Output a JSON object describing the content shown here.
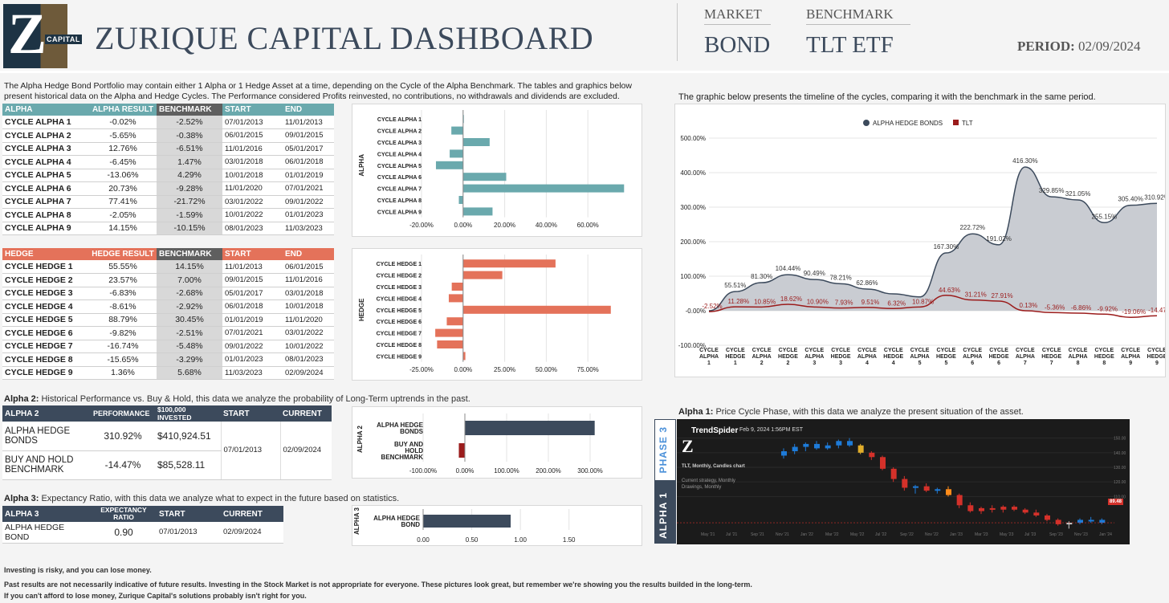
{
  "header": {
    "logo_letter": "Z",
    "logo_text": "CAPITAL",
    "title": "ZURIQUE CAPITAL DASHBOARD",
    "market_label": "MARKET",
    "market_value": "BOND",
    "benchmark_label": "BENCHMARK",
    "benchmark_value": "TLT ETF",
    "period_label": "PERIOD:",
    "period_value": "02/09/2024"
  },
  "intro": "The Alpha Hedge Bond Portfolio may contain either 1 Alpha or 1 Hedge Asset at a time, depending on the Cycle of the Alpha Benchmark. The tables and graphics below present historical data on the Alpha and Hedge Cycles. The Performance considered Profits reinvested, no contributions, no withdrawals and dividends are excluded.",
  "timeline_intro": "The graphic below presents the timeline of the cycles, comparing it with the benchmark in the same period.",
  "alpha_table": {
    "headers": [
      "ALPHA",
      "ALPHA RESULT",
      "BENCHMARK",
      "START",
      "END"
    ],
    "rows": [
      [
        "CYCLE ALPHA 1",
        "-0.02%",
        "-2.52%",
        "07/01/2013",
        "11/01/2013"
      ],
      [
        "CYCLE ALPHA 2",
        "-5.65%",
        "-0.38%",
        "06/01/2015",
        "09/01/2015"
      ],
      [
        "CYCLE ALPHA 3",
        "12.76%",
        "-6.51%",
        "11/01/2016",
        "05/01/2017"
      ],
      [
        "CYCLE ALPHA 4",
        "-6.45%",
        "1.47%",
        "03/01/2018",
        "06/01/2018"
      ],
      [
        "CYCLE ALPHA 5",
        "-13.06%",
        "4.29%",
        "10/01/2018",
        "01/01/2019"
      ],
      [
        "CYCLE ALPHA 6",
        "20.73%",
        "-9.28%",
        "11/01/2020",
        "07/01/2021"
      ],
      [
        "CYCLE ALPHA 7",
        "77.41%",
        "-21.72%",
        "03/01/2022",
        "09/01/2022"
      ],
      [
        "CYCLE ALPHA 8",
        "-2.05%",
        "-1.59%",
        "10/01/2022",
        "01/01/2023"
      ],
      [
        "CYCLE ALPHA 9",
        "14.15%",
        "-10.15%",
        "08/01/2023",
        "11/03/2023"
      ]
    ]
  },
  "hedge_table": {
    "headers": [
      "HEDGE",
      "HEDGE RESULT",
      "BENCHMARK",
      "START",
      "END"
    ],
    "rows": [
      [
        "CYCLE HEDGE 1",
        "55.55%",
        "14.15%",
        "11/01/2013",
        "06/01/2015"
      ],
      [
        "CYCLE HEDGE 2",
        "23.57%",
        "7.00%",
        "09/01/2015",
        "11/01/2016"
      ],
      [
        "CYCLE HEDGE 3",
        "-6.83%",
        "-2.68%",
        "05/01/2017",
        "03/01/2018"
      ],
      [
        "CYCLE HEDGE 4",
        "-8.61%",
        "-2.92%",
        "06/01/2018",
        "10/01/2018"
      ],
      [
        "CYCLE HEDGE 5",
        "88.79%",
        "30.45%",
        "01/01/2019",
        "11/01/2020"
      ],
      [
        "CYCLE HEDGE 6",
        "-9.82%",
        "-2.51%",
        "07/01/2021",
        "03/01/2022"
      ],
      [
        "CYCLE HEDGE 7",
        "-16.74%",
        "-5.48%",
        "09/01/2022",
        "10/01/2022"
      ],
      [
        "CYCLE HEDGE 8",
        "-15.65%",
        "-3.29%",
        "01/01/2023",
        "08/01/2023"
      ],
      [
        "CYCLE HEDGE 9",
        "1.36%",
        "5.68%",
        "11/03/2023",
        "02/09/2024"
      ]
    ]
  },
  "alpha2": {
    "title_bold": "Alpha 2:",
    "title_rest": " Historical Performance vs. Buy & Hold, this data we analyze the probability of Long-Term uptrends in the past.",
    "headers": [
      "ALPHA 2",
      "PERFORMANCE",
      "$100,000 INVESTED",
      "START",
      "CURRENT"
    ],
    "rows": [
      [
        "ALPHA HEDGE BONDS",
        "310.92%",
        "$410,924.51"
      ],
      [
        "BUY AND HOLD BENCHMARK",
        "-14.47%",
        "$85,528.11"
      ]
    ],
    "start": "07/01/2013",
    "current": "02/09/2024"
  },
  "alpha3": {
    "title_bold": "Alpha 3:",
    "title_rest": " Expectancy Ratio, with this data we analyze what to expect in the future based on statistics.",
    "headers": [
      "ALPHA 3",
      "EXPECTANCY RATIO",
      "START",
      "CURRENT"
    ],
    "row": [
      "ALPHA HEDGE BOND",
      "0.90",
      "07/01/2013",
      "02/09/2024"
    ]
  },
  "alpha1": {
    "title_bold": "Alpha 1:",
    "title_rest": " Price Cycle Phase, with this data we analyze the present situation of the asset.",
    "phase_top": "PHASE 3",
    "phase_bottom": "ALPHA 1",
    "ts_brand": "TrendSpider",
    "ts_date": "Feb 9, 2024 1:56PM EST",
    "ts_line1": "TLT, Monthly, Candles chart",
    "ts_line2": "Current strategy, Monthly",
    "ts_line3": "Drawings, Monthly",
    "ts_last": "89.48"
  },
  "chart_data": [
    {
      "type": "bar",
      "id": "alpha",
      "ylabel": "ALPHA",
      "categories": [
        "CYCLE ALPHA 1",
        "CYCLE ALPHA 2",
        "CYCLE ALPHA 3",
        "CYCLE ALPHA 4",
        "CYCLE ALPHA 5",
        "CYCLE ALPHA 6",
        "CYCLE ALPHA 7",
        "CYCLE ALPHA 8",
        "CYCLE ALPHA 9"
      ],
      "values": [
        -0.02,
        -5.65,
        12.76,
        -6.45,
        -13.06,
        20.73,
        77.41,
        -2.05,
        14.15
      ],
      "xlim": [
        -20,
        80
      ],
      "ticks": [
        -20,
        0,
        20,
        40,
        60
      ],
      "tick_labels": [
        "-20.00%",
        "0.00%",
        "20.00%",
        "40.00%",
        "60.00%"
      ],
      "color": "#6aa9ad"
    },
    {
      "type": "bar",
      "id": "hedge",
      "ylabel": "HEDGE",
      "categories": [
        "CYCLE HEDGE 1",
        "CYCLE HEDGE 2",
        "CYCLE HEDGE 3",
        "CYCLE HEDGE 4",
        "CYCLE HEDGE 5",
        "CYCLE HEDGE 6",
        "CYCLE HEDGE 7",
        "CYCLE HEDGE 8",
        "CYCLE HEDGE 9"
      ],
      "values": [
        55.55,
        23.57,
        -6.83,
        -8.61,
        88.79,
        -9.82,
        -16.74,
        -15.65,
        1.36
      ],
      "xlim": [
        -25,
        100
      ],
      "ticks": [
        -25,
        0,
        25,
        50,
        75
      ],
      "tick_labels": [
        "-25.00%",
        "0.00%",
        "25.00%",
        "50.00%",
        "75.00%"
      ],
      "color": "#e4725a"
    },
    {
      "type": "bar",
      "id": "alpha2",
      "ylabel": "ALPHA 2",
      "categories": [
        "ALPHA HEDGE BONDS",
        "BUY AND HOLD BENCHMARK"
      ],
      "values": [
        310.92,
        -14.47
      ],
      "colors": [
        "#3c4a5c",
        "#9b1c1c"
      ],
      "xlim": [
        -100,
        350
      ],
      "ticks": [
        -100,
        0,
        100,
        200,
        300
      ],
      "tick_labels": [
        "-100.00%",
        "0.00%",
        "100.00%",
        "200.00%",
        "300.00%"
      ]
    },
    {
      "type": "bar",
      "id": "alpha3",
      "ylabel": "ALPHA 3",
      "categories": [
        "ALPHA HEDGE BOND"
      ],
      "values": [
        0.9
      ],
      "colors": [
        "#3c4a5c"
      ],
      "xlim": [
        0,
        1.75
      ],
      "ticks": [
        0,
        0.5,
        1,
        1.5
      ],
      "tick_labels": [
        "0.00",
        "0.50",
        "1.00",
        "1.50"
      ]
    },
    {
      "type": "area",
      "id": "timeline",
      "legend": [
        "ALPHA HEDGE BONDS",
        "TLT"
      ],
      "colors": [
        "#3c4a5c",
        "#9b1c1c"
      ],
      "categories": [
        "CYCLE ALPHA 1",
        "CYCLE HEDGE 1",
        "CYCLE ALPHA 2",
        "CYCLE HEDGE 2",
        "CYCLE ALPHA 3",
        "CYCLE HEDGE 3",
        "CYCLE ALPHA 4",
        "CYCLE HEDGE 4",
        "CYCLE ALPHA 5",
        "CYCLE HEDGE 5",
        "CYCLE ALPHA 6",
        "CYCLE HEDGE 6",
        "CYCLE ALPHA 7",
        "CYCLE HEDGE 7",
        "CYCLE ALPHA 8",
        "CYCLE HEDGE 8",
        "CYCLE ALPHA 9",
        "CYCLE HEDGE 9"
      ],
      "series": [
        {
          "name": "ALPHA HEDGE BONDS",
          "values": [
            -0.02,
            55.51,
            81.3,
            104.44,
            90.49,
            78.21,
            62.86,
            48.83,
            40.0,
            167.3,
            222.72,
            191.02,
            416.3,
            329.85,
            321.05,
            255.15,
            305.4,
            310.92
          ],
          "labels": [
            "",
            "55.51%",
            "81.30%",
            "104.44%",
            "90.49%",
            "78.21%",
            "62.86%",
            "",
            "",
            "167.30%",
            "222.72%",
            "191.02%",
            "416.30%",
            "329.85%",
            "321.05%",
            "255.15%",
            "305.40%",
            "310.92%"
          ]
        },
        {
          "name": "TLT",
          "values": [
            -2.52,
            11.28,
            10.85,
            18.62,
            10.9,
            7.93,
            9.51,
            6.32,
            10.87,
            44.63,
            31.21,
            27.91,
            0.13,
            -5.36,
            -6.86,
            -9.92,
            -19.06,
            -14.47
          ],
          "labels": [
            "-2.52%",
            "11.28%",
            "10.85%",
            "18.62%",
            "10.90%",
            "7.93%",
            "9.51%",
            "6.32%",
            "10.87%",
            "44.63%",
            "31.21%",
            "27.91%",
            "0.13%",
            "-5.36%",
            "-6.86%",
            "-9.92%",
            "-19.06%",
            "-14.47%"
          ]
        }
      ],
      "ylim": [
        -100,
        500
      ],
      "yticks": [
        -100,
        0,
        100,
        200,
        300,
        400,
        500
      ],
      "ytick_labels": [
        "-100.00%",
        "-0.00%",
        "100.00%",
        "200.00%",
        "300.00%",
        "400.00%",
        "500.00%"
      ],
      "grid": true,
      "legend_position": "top"
    },
    {
      "type": "candlestick",
      "id": "tlt-monthly",
      "x_tick_labels": [
        "May '21",
        "Jul '21",
        "Sep '21",
        "Nov '21",
        "Jan '22",
        "Mar '22",
        "May '22",
        "Jul '22",
        "Sep '22",
        "Nov '22",
        "Jan '23",
        "Mar '23",
        "May '23",
        "Jul '23",
        "Sep '23",
        "Nov '23",
        "Jan '24"
      ],
      "y_tick_labels": [
        "150.00",
        "140.00",
        "130.00",
        "120.00",
        "110.00"
      ],
      "candles": [
        [
          138,
          143,
          136,
          141,
          "#1e7bd8"
        ],
        [
          141,
          146,
          139,
          144,
          "#1e7bd8"
        ],
        [
          144,
          147,
          141,
          146,
          "#1e7bd8"
        ],
        [
          146,
          148,
          142,
          143,
          "#1e7bd8"
        ],
        [
          143,
          147,
          142,
          145,
          "#1e7bd8"
        ],
        [
          145,
          149,
          143,
          148,
          "#1e7bd8"
        ],
        [
          148,
          150,
          144,
          145,
          "#1e7bd8"
        ],
        [
          145,
          146,
          139,
          140,
          "#e1ad2a"
        ],
        [
          140,
          141,
          135,
          137,
          "#d4312a"
        ],
        [
          137,
          138,
          128,
          129,
          "#d4312a"
        ],
        [
          129,
          130,
          120,
          122,
          "#d4312a"
        ],
        [
          122,
          124,
          114,
          116,
          "#d4312a"
        ],
        [
          116,
          118,
          112,
          117,
          "#1e7bd8"
        ],
        [
          117,
          119,
          113,
          114,
          "#d4312a"
        ],
        [
          114,
          116,
          112,
          115,
          "#1e7bd8"
        ],
        [
          115,
          117,
          110,
          111,
          "#ff8c1a"
        ],
        [
          111,
          112,
          102,
          104,
          "#d4312a"
        ],
        [
          104,
          106,
          99,
          100,
          "#d4312a"
        ],
        [
          100,
          103,
          98,
          102,
          "#d4312a"
        ],
        [
          102,
          104,
          99,
          101,
          "#d4312a"
        ],
        [
          101,
          104,
          99,
          103,
          "#d4312a"
        ],
        [
          103,
          104,
          100,
          101,
          "#d4312a"
        ],
        [
          101,
          102,
          98,
          99,
          "#d4312a"
        ],
        [
          99,
          101,
          96,
          97,
          "#d4312a"
        ],
        [
          97,
          98,
          93,
          94,
          "#d4312a"
        ],
        [
          94,
          95,
          90,
          91,
          "#d4312a"
        ],
        [
          91,
          93,
          88,
          92,
          "#c8c8c8"
        ],
        [
          92,
          95,
          91,
          94,
          "#1e7bd8"
        ],
        [
          94,
          96,
          92,
          94,
          "#1e7bd8"
        ],
        [
          94,
          95,
          91,
          92,
          "#1e7bd8"
        ]
      ]
    }
  ],
  "footer": [
    "Investing is risky, and you can lose money.",
    "Past results are not necessarily indicative of future results. Investing in the Stock Market is not appropriate for everyone. These pictures look great, but remember we're showing you the results builded in the long-term.",
    "If you can't afford to lose money, Zurique Capital's solutions probably isn't right for you."
  ]
}
